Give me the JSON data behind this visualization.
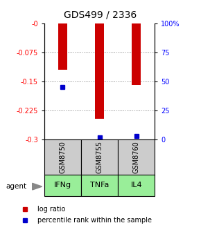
{
  "title": "GDS499 / 2336",
  "samples": [
    "GSM8750",
    "GSM8755",
    "GSM8760"
  ],
  "agents": [
    "IFNg",
    "TNFa",
    "IL4"
  ],
  "log_ratios": [
    -0.12,
    -0.248,
    -0.16
  ],
  "percentile_ranks": [
    0.45,
    0.015,
    0.03
  ],
  "ylim_left": [
    -0.3,
    0.0
  ],
  "ylim_right": [
    0.0,
    1.0
  ],
  "yticks_left": [
    0.0,
    -0.075,
    -0.15,
    -0.225,
    -0.3
  ],
  "ytick_labels_left": [
    "-0",
    "-0.075",
    "-0.15",
    "-0.225",
    "-0.3"
  ],
  "ytick_labels_right": [
    "0",
    "25",
    "50",
    "75",
    "100%"
  ],
  "bar_color_red": "#cc0000",
  "bar_color_blue": "#0000cc",
  "agent_bg_color": "#99ee99",
  "sample_bg_color": "#cccccc",
  "legend_red_label": "log ratio",
  "legend_blue_label": "percentile rank within the sample",
  "bar_width": 0.25,
  "agent_label": "agent"
}
